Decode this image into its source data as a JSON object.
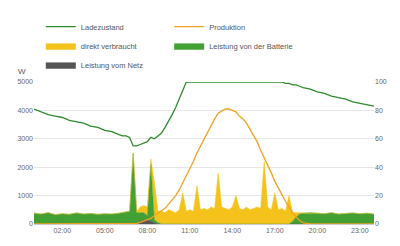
{
  "chart_data": {
    "type": "area",
    "ylabel": "W",
    "stacked": true,
    "grid": true,
    "legend": "top",
    "x": [
      0,
      0.5,
      1,
      1.5,
      2,
      2.5,
      3,
      3.5,
      4,
      4.5,
      5,
      5.5,
      6,
      6.25,
      6.5,
      6.75,
      7,
      7.25,
      7.5,
      7.75,
      8,
      8.25,
      8.5,
      8.75,
      9,
      9.25,
      9.5,
      9.75,
      10,
      10.25,
      10.5,
      10.75,
      11,
      11.25,
      11.5,
      11.75,
      12,
      12.25,
      12.5,
      12.75,
      13,
      13.25,
      13.5,
      13.75,
      14,
      14.25,
      14.5,
      14.75,
      15,
      15.25,
      15.5,
      15.75,
      16,
      16.25,
      16.5,
      16.75,
      17,
      17.25,
      17.5,
      17.75,
      18,
      18.25,
      18.5,
      18.75,
      19,
      19.5,
      20,
      20.5,
      21,
      21.5,
      22,
      22.5,
      23,
      23.5,
      24
    ],
    "xlim": [
      0,
      24
    ],
    "xticks": [
      {
        "value": 2,
        "label": "02:00"
      },
      {
        "value": 5,
        "label": "05:00"
      },
      {
        "value": 8,
        "label": "08:00"
      },
      {
        "value": 11,
        "label": "11:00"
      },
      {
        "value": 14,
        "label": "14:00"
      },
      {
        "value": 17,
        "label": "17:00"
      },
      {
        "value": 20,
        "label": "20:00"
      },
      {
        "value": 23,
        "label": "23:00"
      }
    ],
    "ylim": [
      0,
      5000
    ],
    "yticks": [
      0,
      1000,
      2000,
      3000,
      4000,
      5000
    ],
    "y2lim": [
      0,
      100
    ],
    "y2ticks": [
      0,
      20,
      40,
      60,
      80,
      100
    ],
    "series": [
      {
        "name": "Leistung vom Netz",
        "type": "area",
        "color": "#555555",
        "values": [
          0,
          0,
          0,
          0,
          0,
          0,
          0,
          0,
          0,
          0,
          0,
          0,
          0,
          0,
          0,
          0,
          0,
          0,
          100,
          150,
          150,
          100,
          50,
          0,
          0,
          0,
          0,
          0,
          0,
          0,
          0,
          0,
          0,
          0,
          0,
          0,
          0,
          0,
          0,
          0,
          0,
          0,
          0,
          0,
          0,
          0,
          0,
          0,
          0,
          0,
          0,
          0,
          0,
          0,
          0,
          0,
          0,
          0,
          0,
          0,
          0,
          0,
          0,
          0,
          0,
          0,
          0,
          0,
          0,
          0,
          0,
          0,
          0,
          0,
          0
        ]
      },
      {
        "name": "Leistung von der Batterie",
        "type": "area",
        "color": "#43a034",
        "values": [
          380,
          350,
          400,
          330,
          360,
          340,
          390,
          350,
          370,
          340,
          360,
          350,
          380,
          400,
          420,
          450,
          2500,
          400,
          300,
          250,
          150,
          2000,
          100,
          50,
          0,
          0,
          0,
          0,
          0,
          0,
          0,
          0,
          0,
          0,
          0,
          0,
          0,
          0,
          0,
          0,
          0,
          0,
          0,
          0,
          0,
          0,
          0,
          0,
          0,
          0,
          0,
          0,
          0,
          0,
          0,
          0,
          0,
          0,
          0,
          0,
          0,
          100,
          250,
          350,
          380,
          400,
          380,
          360,
          400,
          350,
          370,
          390,
          360,
          380,
          350
        ]
      },
      {
        "name": "direkt verbraucht",
        "type": "area",
        "color": "#f5c21b",
        "values": [
          0,
          0,
          0,
          0,
          0,
          0,
          0,
          0,
          0,
          0,
          0,
          0,
          0,
          0,
          0,
          0,
          0,
          50,
          200,
          250,
          300,
          200,
          1300,
          400,
          450,
          400,
          500,
          450,
          400,
          500,
          1100,
          450,
          500,
          450,
          1350,
          500,
          550,
          500,
          600,
          550,
          1800,
          600,
          550,
          500,
          600,
          1000,
          550,
          500,
          600,
          500,
          550,
          600,
          550,
          2200,
          600,
          500,
          1100,
          500,
          550,
          450,
          1000,
          300,
          150,
          50,
          0,
          0,
          0,
          0,
          0,
          0,
          0,
          0,
          0,
          0,
          0
        ]
      },
      {
        "name": "Produktion",
        "type": "line",
        "color": "#f0a21e",
        "values": [
          0,
          0,
          0,
          0,
          0,
          0,
          0,
          0,
          0,
          0,
          0,
          0,
          0,
          0,
          0,
          0,
          0,
          20,
          60,
          100,
          150,
          200,
          300,
          380,
          450,
          550,
          700,
          850,
          1000,
          1200,
          1450,
          1650,
          1900,
          2200,
          2500,
          2750,
          3000,
          3250,
          3500,
          3700,
          3900,
          3980,
          4050,
          4050,
          4000,
          3950,
          3800,
          3700,
          3550,
          3350,
          3150,
          2900,
          2600,
          2350,
          2100,
          1800,
          1500,
          1250,
          1000,
          800,
          600,
          400,
          250,
          120,
          40,
          0,
          0,
          0,
          0,
          0,
          0,
          0,
          0,
          0,
          0
        ]
      },
      {
        "name": "Ladezustand",
        "type": "line",
        "axis": "y2",
        "color": "#2e8b2e",
        "values": [
          81,
          79,
          77,
          76,
          75,
          73,
          72,
          71,
          69,
          68,
          66,
          65,
          63,
          62,
          62,
          61,
          55,
          55,
          56,
          57,
          58,
          61,
          60,
          62,
          64,
          68,
          72,
          77,
          82,
          88,
          94,
          100,
          100,
          100,
          100,
          100,
          100,
          100,
          100,
          100,
          100,
          100,
          100,
          100,
          100,
          100,
          100,
          100,
          100,
          100,
          100,
          100,
          100,
          100,
          100,
          100,
          100,
          100,
          100,
          99,
          99,
          98,
          98,
          97,
          96,
          95,
          93,
          92,
          90,
          89,
          88,
          86,
          85,
          84,
          83
        ]
      }
    ]
  }
}
